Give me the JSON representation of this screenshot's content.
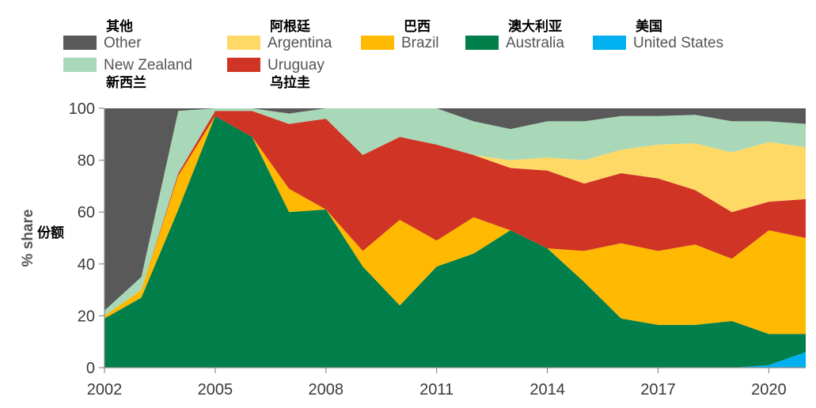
{
  "chart_data": {
    "type": "area",
    "stacked": true,
    "x": [
      2002,
      2003,
      2004,
      2005,
      2006,
      2007,
      2008,
      2009,
      2010,
      2011,
      2012,
      2013,
      2014,
      2015,
      2016,
      2017,
      2018,
      2019,
      2020,
      2021
    ],
    "xticks": [
      "2002",
      "2005",
      "2008",
      "2011",
      "2014",
      "2017",
      "2020"
    ],
    "yticks": [
      "0",
      "20",
      "40",
      "60",
      "80",
      "100"
    ],
    "ylim": [
      0,
      100
    ],
    "ylabel": "% share",
    "ylabel_zh": "份额",
    "series": [
      {
        "name": "United States",
        "name_zh": "美国",
        "color": "#00b0f0",
        "values": [
          0,
          0,
          0,
          0,
          0,
          0,
          0,
          0,
          0,
          0,
          0,
          0,
          0,
          0,
          0,
          0,
          0,
          0,
          1,
          6
        ]
      },
      {
        "name": "Australia",
        "name_zh": "澳大利亚",
        "color": "#007f4a",
        "values": [
          19,
          27,
          61,
          97,
          89,
          60,
          61,
          39,
          24,
          39,
          44,
          53,
          46,
          33,
          19,
          16.5,
          16.5,
          18,
          12,
          7
        ]
      },
      {
        "name": "Brazil",
        "name_zh": "巴西",
        "color": "#ffb900",
        "values": [
          1,
          3,
          13,
          0,
          0,
          9,
          0,
          6,
          33,
          10,
          14,
          0,
          0,
          12,
          29,
          28.5,
          31,
          24,
          40,
          37
        ]
      },
      {
        "name": "Uruguay",
        "name_zh": "乌拉圭",
        "color": "#d03425",
        "values": [
          0,
          0,
          1,
          2,
          10,
          25,
          35,
          37,
          32,
          37,
          24,
          24,
          30,
          26,
          27,
          28,
          21,
          18,
          11,
          15
        ]
      },
      {
        "name": "Argentina",
        "name_zh": "阿根廷",
        "color": "#ffd966",
        "values": [
          0,
          0,
          0,
          0,
          0,
          0,
          0,
          0,
          0,
          0,
          0,
          3,
          5,
          9,
          9,
          13,
          18,
          23,
          23,
          20
        ]
      },
      {
        "name": "New Zealand",
        "name_zh": "新西兰",
        "color": "#a9d8b8",
        "values": [
          2,
          5,
          24,
          1,
          1,
          4,
          4,
          18,
          11,
          14,
          13,
          12,
          14,
          15,
          13,
          11,
          11,
          12,
          8,
          9
        ]
      },
      {
        "name": "Other",
        "name_zh": "其他",
        "color": "#595959",
        "values": [
          78,
          65,
          1,
          0,
          0,
          2,
          0,
          0,
          0,
          0,
          5,
          8,
          5,
          5,
          3,
          3,
          2.5,
          5,
          5,
          6
        ]
      }
    ],
    "legend": [
      {
        "en": "Other",
        "zh": "其他",
        "color": "#595959"
      },
      {
        "en": "Argentina",
        "zh": "阿根廷",
        "color": "#ffd966"
      },
      {
        "en": "Brazil",
        "zh": "巴西",
        "color": "#ffb900"
      },
      {
        "en": "Australia",
        "zh": "澳大利亚",
        "color": "#007f4a"
      },
      {
        "en": "United States",
        "zh": "美国",
        "color": "#00b0f0"
      },
      {
        "en": "New Zealand",
        "zh": "新西兰",
        "color": "#a9d8b8"
      },
      {
        "en": "Uruguay",
        "zh": "乌拉圭",
        "color": "#d03425"
      }
    ],
    "legend_position": "top"
  }
}
